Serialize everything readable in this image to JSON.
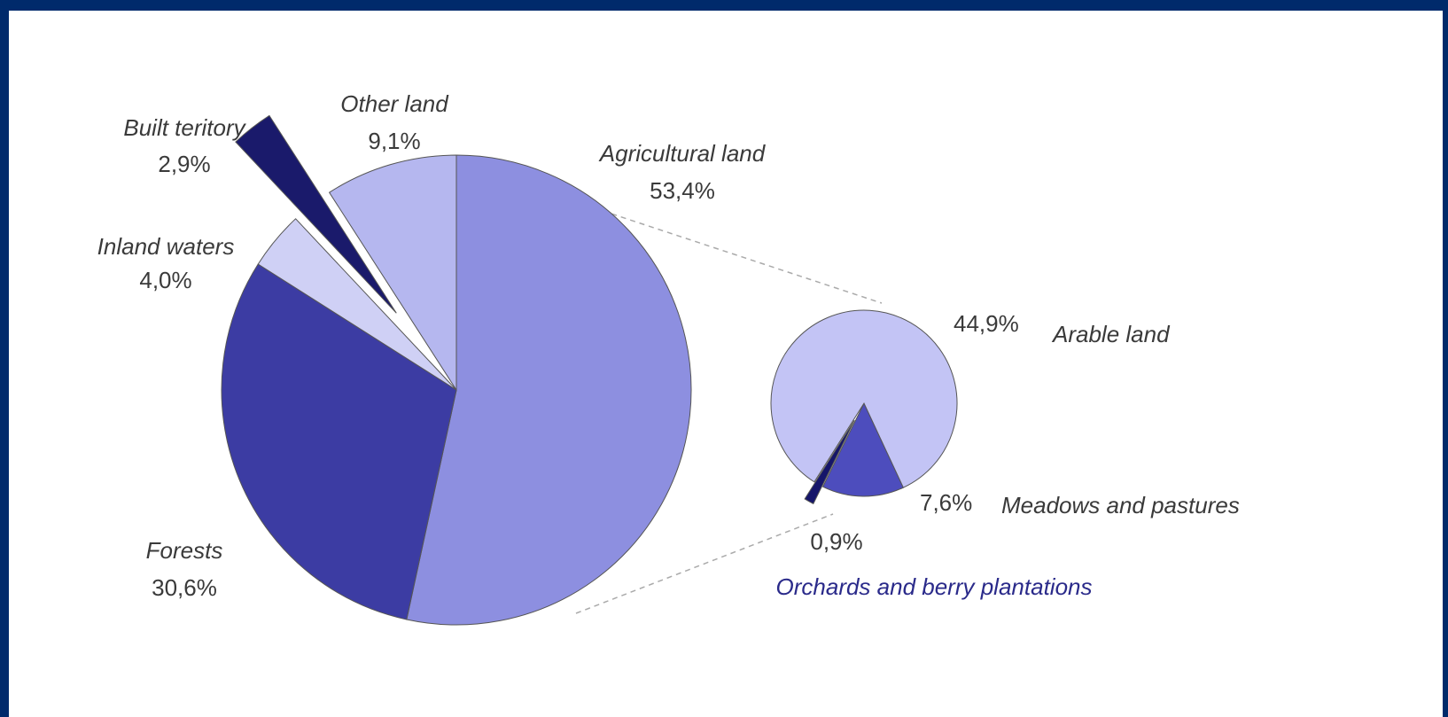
{
  "chart_data": [
    {
      "type": "pie",
      "title": "",
      "slices": [
        {
          "label": "Agricultural land",
          "value_text": "53,4%",
          "value": 53.4,
          "color": "#8d8fe0"
        },
        {
          "label": "Forests",
          "value_text": "30,6%",
          "value": 30.6,
          "color": "#3c3ca3"
        },
        {
          "label": "Inland waters",
          "value_text": "4,0%",
          "value": 4.0,
          "color": "#cfd0f5"
        },
        {
          "label": "Built teritory",
          "value_text": "2,9%",
          "value": 2.9,
          "color": "#1a1a6b"
        },
        {
          "label": "Other land",
          "value_text": "9,1%",
          "value": 9.1,
          "color": "#b5b7ef"
        }
      ]
    },
    {
      "type": "pie",
      "title": "",
      "slices": [
        {
          "label": "Arable land",
          "value_text": "44,9%",
          "value": 44.9,
          "color": "#c3c4f5"
        },
        {
          "label": "Meadows and pastures",
          "value_text": "7,6%",
          "value": 7.6,
          "color": "#4d4dbd"
        },
        {
          "label": "Orchards and berry plantations",
          "value_text": "0,9%",
          "value": 0.9,
          "color": "#15156a"
        }
      ]
    }
  ]
}
